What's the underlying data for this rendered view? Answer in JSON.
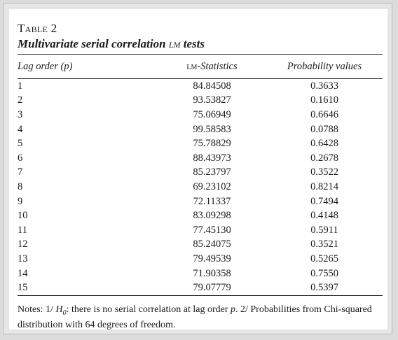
{
  "table": {
    "label": "Table 2",
    "title_main": "Multivariate serial correlation ",
    "title_sc": "lm",
    "title_end": " tests",
    "headers": {
      "lag": "Lag order (p)",
      "lm_prefix": "lm",
      "lm_rest": "-Statistics",
      "prob": "Probability values"
    },
    "rows": [
      {
        "lag": "1",
        "lm": "84.84508",
        "prob": "0.3633"
      },
      {
        "lag": "2",
        "lm": "93.53827",
        "prob": "0.1610"
      },
      {
        "lag": "3",
        "lm": "75.06949",
        "prob": "0.6646"
      },
      {
        "lag": "4",
        "lm": "99.58583",
        "prob": "0.0788"
      },
      {
        "lag": "5",
        "lm": "75.78829",
        "prob": "0.6428"
      },
      {
        "lag": "6",
        "lm": "88.43973",
        "prob": "0.2678"
      },
      {
        "lag": "7",
        "lm": "85.23797",
        "prob": "0.3522"
      },
      {
        "lag": "8",
        "lm": "69.23102",
        "prob": "0.8214"
      },
      {
        "lag": "9",
        "lm": "72.11337",
        "prob": "0.7494"
      },
      {
        "lag": "10",
        "lm": "83.09298",
        "prob": "0.4148"
      },
      {
        "lag": "11",
        "lm": "77.45130",
        "prob": "0.5911"
      },
      {
        "lag": "12",
        "lm": "85.24075",
        "prob": "0.3521"
      },
      {
        "lag": "13",
        "lm": "79.49539",
        "prob": "0.5265"
      },
      {
        "lag": "14",
        "lm": "71.90358",
        "prob": "0.7550"
      },
      {
        "lag": "15",
        "lm": "79.07779",
        "prob": "0.5397"
      }
    ],
    "notes": {
      "prefix": "Notes: 1/ ",
      "h_var": "H",
      "h_sub": "0",
      "text_a": ": there is no serial correlation at lag order ",
      "p_var": "p",
      "text_b": ". 2/ Probabilities from Chi-squared distribution with 64 degrees of freedom."
    }
  }
}
